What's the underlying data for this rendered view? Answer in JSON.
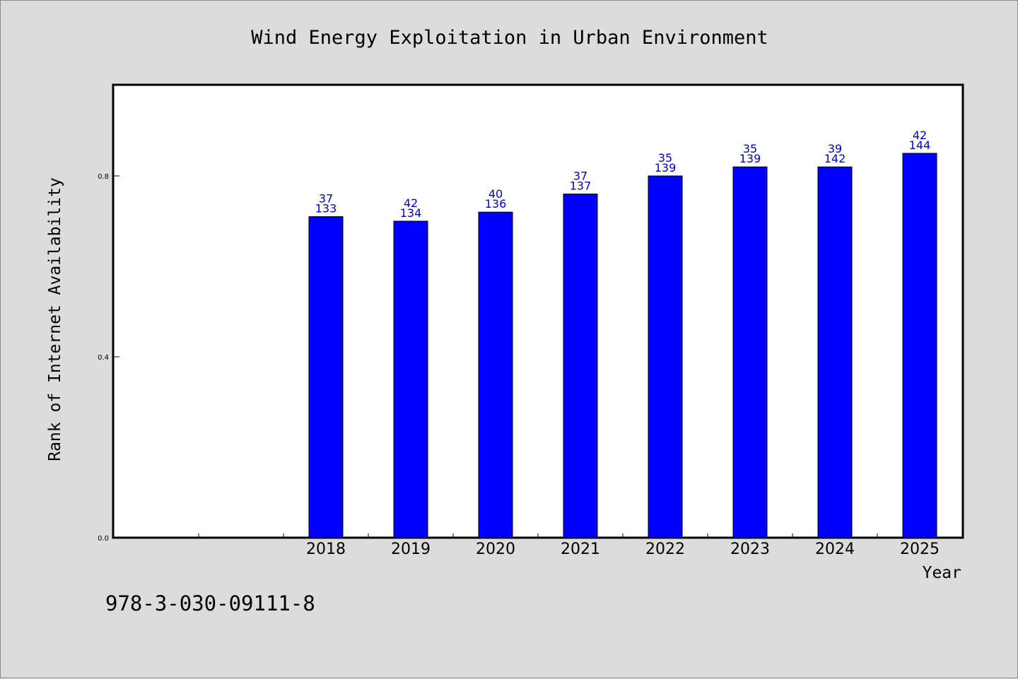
{
  "footnote": "978-3-030-09111-8",
  "chart_data": {
    "type": "bar",
    "title": "Wind Energy Exploitation in Urban Environment",
    "xlabel": "Year",
    "ylabel": "Rank of Internet Availability",
    "categories": [
      "",
      "",
      "2018",
      "2019",
      "2020",
      "2021",
      "2022",
      "2023",
      "2024",
      "2025"
    ],
    "values": [
      null,
      null,
      0.71,
      0.7,
      0.72,
      0.76,
      0.8,
      0.82,
      0.82,
      0.85
    ],
    "label_top": [
      "",
      "",
      "37",
      "42",
      "40",
      "37",
      "35",
      "35",
      "39",
      "42"
    ],
    "label_bottom": [
      "",
      "",
      "133",
      "134",
      "136",
      "137",
      "139",
      "139",
      "142",
      "144"
    ],
    "ylim": [
      0,
      1.0
    ],
    "yticks": [
      0.0,
      0.4,
      0.8
    ],
    "ytick_labels": [
      "0.0",
      "0.4",
      "0.8"
    ],
    "bar_color": "#0000ff",
    "label_color": "#0000cc",
    "plot_background": "#ffffff",
    "page_background": "#dcdcdc",
    "grid": false,
    "legend": "none"
  }
}
